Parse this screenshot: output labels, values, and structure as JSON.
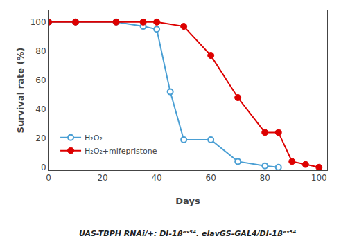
{
  "chart_data": {
    "type": "line",
    "subtitle": "UAS-TBPH RNAi/+; DJ-1βᵉˣ⁵⁴, elavGS-GAL4/DJ-1βᵉˣ⁵⁴",
    "xlabel": "Days",
    "ylabel": "Survival rate (%)",
    "series": [
      {
        "name": "H₂O₂",
        "color": "#4a9fd4",
        "marker": "circle-open",
        "x": [
          0,
          10,
          25,
          35,
          40,
          45,
          50,
          60,
          70,
          80,
          85
        ],
        "values": [
          100,
          100,
          100,
          97,
          95,
          52,
          19,
          19,
          4,
          1,
          0
        ]
      },
      {
        "name": "H₂O₂+mifepristone",
        "color": "#dd0000",
        "marker": "circle",
        "x": [
          0,
          10,
          25,
          35,
          40,
          50,
          60,
          70,
          80,
          85,
          90,
          95,
          100
        ],
        "values": [
          100,
          100,
          100,
          100,
          100,
          97,
          77,
          48,
          24,
          24,
          4,
          2,
          0
        ]
      }
    ],
    "xlim": [
      0,
      103
    ],
    "ylim": [
      -2,
      108
    ],
    "xticks": [
      0,
      20,
      40,
      60,
      80,
      100
    ],
    "yticks": [
      0,
      20,
      40,
      60,
      80,
      100
    ],
    "grid": false,
    "legend": "lower left"
  }
}
